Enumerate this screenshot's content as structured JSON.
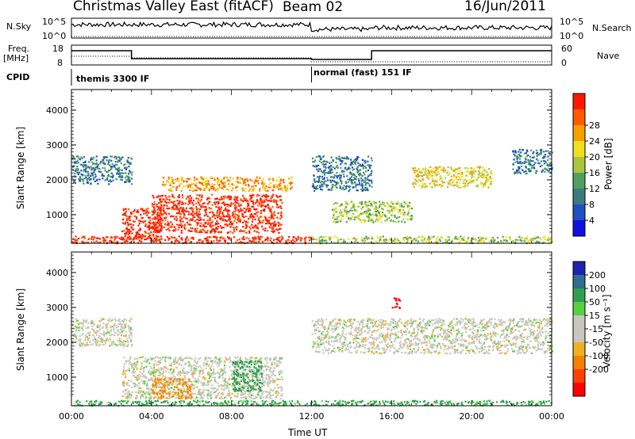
{
  "header": {
    "title": "Christmas Valley East (fitACF)",
    "beam": "Beam 02",
    "date": "16/Jun/2011"
  },
  "summary_panels": {
    "nsky_label": "N.Sky",
    "nsky_top": "10^5",
    "nsky_bottom": "10^0",
    "nsearch_label": "N.Search",
    "nsearch_top": "10^5",
    "nsearch_bottom": "10^0",
    "freq_label": "Freq.",
    "freq_unit": "[MHz]",
    "freq_top": "18",
    "freq_bottom": "8",
    "nave_label": "Nave",
    "nave_top": "60",
    "nave_bottom": "0",
    "cpid_label": "CPID",
    "cpid_1": "themis 3300 IF",
    "cpid_2": "normal (fast) 151 IF"
  },
  "chart_data": [
    {
      "type": "heatmap",
      "name": "power",
      "ylabel": "Slant Range [km]",
      "y_ticks": [
        "1000",
        "2000",
        "3000",
        "4000"
      ],
      "y_range": [
        180,
        4590
      ],
      "colorbar_label": "Power [dB]",
      "colorbar_ticks": [
        "4",
        "8",
        "12",
        "16",
        "20",
        "24",
        "28"
      ],
      "colorbar_colors": [
        "#1010e0",
        "#2050c0",
        "#3c7a80",
        "#4fa060",
        "#aac83c",
        "#f0e020",
        "#f5a000",
        "#ff5a00",
        "#ff1800"
      ],
      "bands": [
        {
          "t0": 0.0,
          "t1": 3.0,
          "r0": 1900,
          "r1": 2700,
          "level": 2
        },
        {
          "t0": 2.5,
          "t1": 4.5,
          "r0": 300,
          "r1": 1200,
          "level": 8
        },
        {
          "t0": 4.0,
          "t1": 10.5,
          "r0": 500,
          "r1": 1600,
          "level": 8
        },
        {
          "t0": 4.5,
          "t1": 11.0,
          "r0": 1700,
          "r1": 2100,
          "level": 6
        },
        {
          "t0": 0.0,
          "t1": 12.0,
          "r0": 200,
          "r1": 400,
          "level": 8
        },
        {
          "t0": 12.0,
          "t1": 24.0,
          "r0": 200,
          "r1": 400,
          "level": 4
        },
        {
          "t0": 12.0,
          "t1": 15.0,
          "r0": 1700,
          "r1": 2700,
          "level": 2
        },
        {
          "t0": 13.0,
          "t1": 17.0,
          "r0": 800,
          "r1": 1400,
          "level": 4
        },
        {
          "t0": 17.0,
          "t1": 21.0,
          "r0": 1800,
          "r1": 2400,
          "level": 5
        },
        {
          "t0": 22.0,
          "t1": 24.0,
          "r0": 2200,
          "r1": 2900,
          "level": 2
        }
      ]
    },
    {
      "type": "heatmap",
      "name": "velocity",
      "ylabel": "Slant Range [km]",
      "y_ticks": [
        "1000",
        "2000",
        "3000",
        "4000"
      ],
      "y_range": [
        180,
        4590
      ],
      "colorbar_label": "Velocity [m s⁻¹]",
      "colorbar_ticks": [
        "200",
        "100",
        "50",
        "15",
        "-15",
        "-50",
        "-100",
        "-200"
      ],
      "colorbar_colors": [
        "#2020b0",
        "#2e6e90",
        "#30a050",
        "#58d040",
        "#c8c8c0",
        "#c8c8c0",
        "#f0b020",
        "#f58000",
        "#ff4000",
        "#ff0000"
      ],
      "bands": [
        {
          "t0": 0.0,
          "t1": 3.0,
          "r0": 1900,
          "r1": 2700,
          "vel": 0
        },
        {
          "t0": 2.5,
          "t1": 10.5,
          "r0": 400,
          "r1": 1600,
          "vel": 0
        },
        {
          "t0": 8.0,
          "t1": 9.5,
          "r0": 600,
          "r1": 1500,
          "vel": 70
        },
        {
          "t0": 4.0,
          "t1": 6.0,
          "r0": 400,
          "r1": 1000,
          "vel": -60
        },
        {
          "t0": 12.0,
          "t1": 24.0,
          "r0": 1700,
          "r1": 2700,
          "vel": 0
        },
        {
          "t0": 0.0,
          "t1": 24.0,
          "r0": 200,
          "r1": 350,
          "vel": 60
        },
        {
          "t0": 16.0,
          "t1": 16.4,
          "r0": 3000,
          "r1": 3300,
          "vel": -250
        }
      ]
    }
  ],
  "x_axis": {
    "label": "Time UT",
    "ticks": [
      "00:00",
      "04:00",
      "08:00",
      "12:00",
      "16:00",
      "20:00",
      "00:00"
    ],
    "range_hours": [
      0,
      24
    ]
  }
}
